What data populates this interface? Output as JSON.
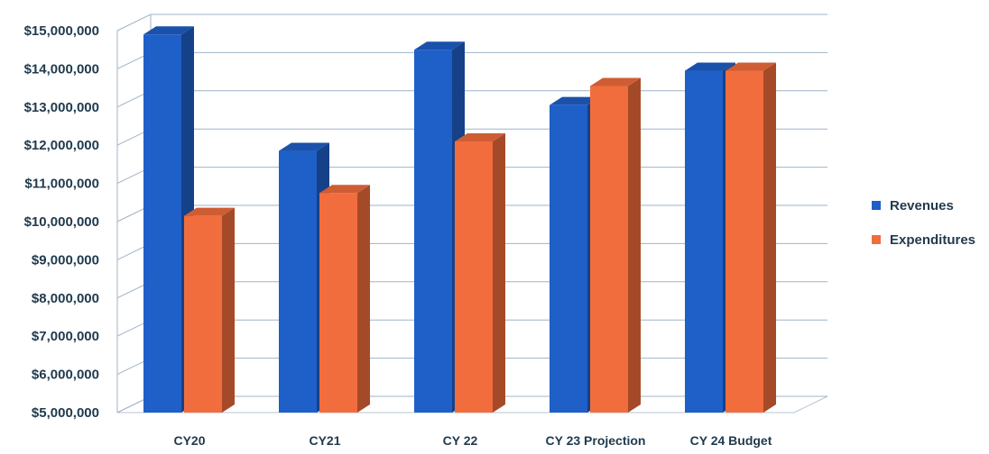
{
  "chart_data": {
    "type": "bar",
    "title": "",
    "xlabel": "",
    "ylabel": "",
    "categories": [
      "CY20",
      "CY21",
      "CY 22",
      "CY 23 Projection",
      "CY 24 Budget"
    ],
    "series": [
      {
        "name": "Revenues",
        "color": "#1f5fc8",
        "values": [
          14900000,
          11850000,
          14500000,
          13050000,
          13950000
        ]
      },
      {
        "name": "Expenditures",
        "color": "#f26d3d",
        "values": [
          10150000,
          10750000,
          12100000,
          13550000,
          13950000
        ]
      }
    ],
    "ylim": [
      5000000,
      15000000
    ],
    "yticks": [
      5000000,
      6000000,
      7000000,
      8000000,
      9000000,
      10000000,
      11000000,
      12000000,
      13000000,
      14000000,
      15000000
    ],
    "ytick_labels": [
      "$5,000,000",
      "$6,000,000",
      "$7,000,000",
      "$8,000,000",
      "$9,000,000",
      "$10,000,000",
      "$11,000,000",
      "$12,000,000",
      "$13,000,000",
      "$14,000,000",
      "$15,000,000"
    ],
    "grid": true,
    "legend_position": "right",
    "style": "3d-clustered-column"
  }
}
